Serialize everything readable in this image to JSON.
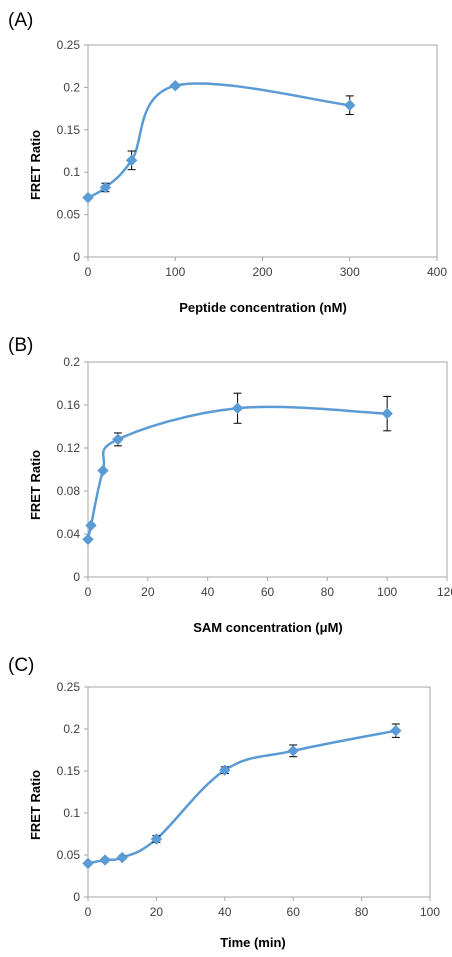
{
  "chart_data": [
    {
      "panel_label": "(A)",
      "type": "line",
      "xlabel": "Peptide concentration (nM)",
      "ylabel": "FRET Ratio",
      "xlim": [
        0,
        400
      ],
      "ylim": [
        0,
        0.25
      ],
      "x_ticks": [
        0,
        100,
        200,
        300,
        400
      ],
      "y_ticks": [
        0,
        0.05,
        0.1,
        0.15,
        0.2,
        0.25
      ],
      "x_tick_labels": [
        "0",
        "100",
        "200",
        "300",
        "400"
      ],
      "y_tick_labels": [
        "0",
        "0.05",
        "0.1",
        "0.15",
        "0.2",
        "0.25"
      ],
      "grid": false,
      "series": [
        {
          "x": [
            0,
            20,
            50,
            100,
            300
          ],
          "y": [
            0.07,
            0.082,
            0.114,
            0.202,
            0.179
          ],
          "err": [
            0,
            0.005,
            0.011,
            0.002,
            0.011
          ]
        }
      ],
      "color": "#5b9bd5"
    },
    {
      "panel_label": "(B)",
      "type": "line",
      "xlabel": "SAM concentration (μM)",
      "ylabel": "FRET Ratio",
      "xlim": [
        0,
        120
      ],
      "ylim": [
        0,
        0.2
      ],
      "x_ticks": [
        0,
        20,
        40,
        60,
        80,
        100,
        120
      ],
      "y_ticks": [
        0,
        0.04,
        0.08,
        0.12,
        0.16,
        0.2
      ],
      "x_tick_labels": [
        "0",
        "20",
        "40",
        "60",
        "80",
        "100",
        "120"
      ],
      "y_tick_labels": [
        "0",
        "0.04",
        "0.08",
        "0.12",
        "0.16",
        "0.2"
      ],
      "grid": false,
      "series": [
        {
          "x": [
            0,
            1,
            5,
            10,
            50,
            100
          ],
          "y": [
            0.035,
            0.048,
            0.099,
            0.128,
            0.157,
            0.152
          ],
          "err": [
            0,
            0,
            0,
            0.006,
            0.014,
            0.016
          ]
        }
      ],
      "color": "#5b9bd5"
    },
    {
      "panel_label": "(C)",
      "type": "line",
      "xlabel": "Time (min)",
      "ylabel": "FRET Ratio",
      "xlim": [
        0,
        100
      ],
      "ylim": [
        0,
        0.25
      ],
      "x_ticks": [
        0,
        20,
        40,
        60,
        80,
        100
      ],
      "y_ticks": [
        0,
        0.05,
        0.1,
        0.15,
        0.2,
        0.25
      ],
      "x_tick_labels": [
        "0",
        "20",
        "40",
        "60",
        "80",
        "100"
      ],
      "y_tick_labels": [
        "0",
        "0.05",
        "0.1",
        "0.15",
        "0.2",
        "0.25"
      ],
      "grid": false,
      "series": [
        {
          "x": [
            0,
            5,
            10,
            20,
            40,
            60,
            90
          ],
          "y": [
            0.04,
            0.044,
            0.047,
            0.069,
            0.151,
            0.174,
            0.198
          ],
          "err": [
            0,
            0.002,
            0.002,
            0.004,
            0.004,
            0.007,
            0.008
          ]
        }
      ],
      "color": "#5b9bd5"
    }
  ]
}
